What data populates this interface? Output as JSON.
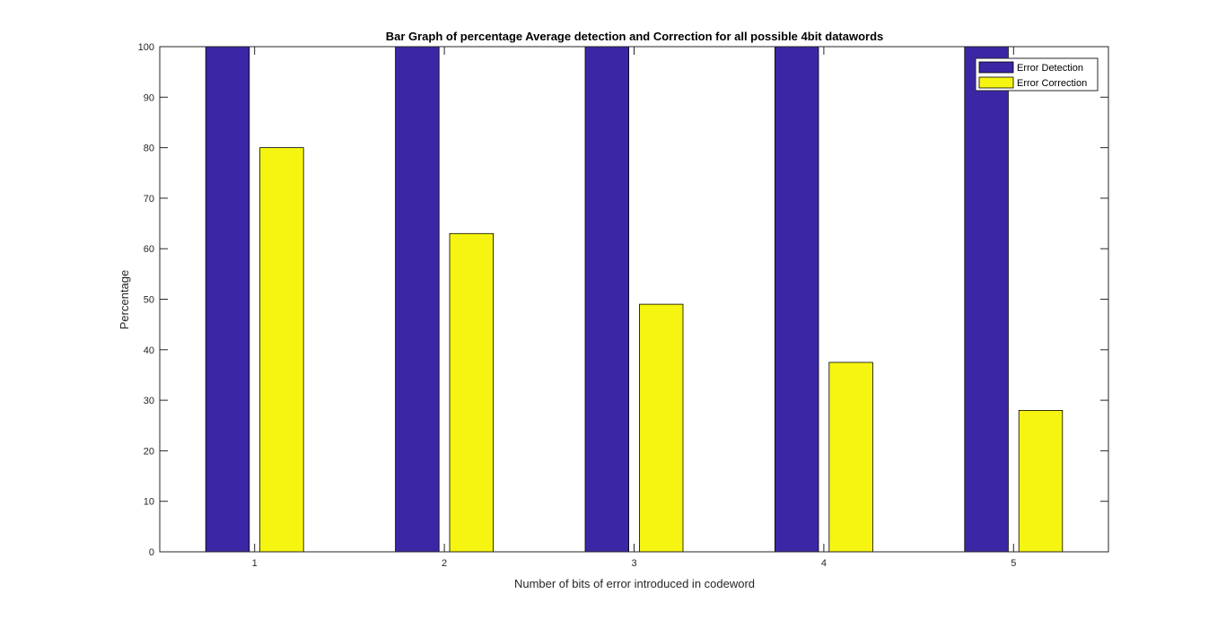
{
  "chart_data": {
    "type": "bar",
    "title": "Bar Graph of percentage Average detection and Correction for all possible 4bit datawords",
    "xlabel": "Number of bits of error introduced in codeword",
    "ylabel": "Percentage",
    "categories": [
      "1",
      "2",
      "3",
      "4",
      "5"
    ],
    "ylim": [
      0,
      100
    ],
    "yticks": [
      0,
      10,
      20,
      30,
      40,
      50,
      60,
      70,
      80,
      90,
      100
    ],
    "grid": false,
    "legend_position": "top-right",
    "series": [
      {
        "name": "Error Detection",
        "color": "#3b27a5",
        "values": [
          100,
          100,
          100,
          100,
          100
        ]
      },
      {
        "name": "Error Correction",
        "color": "#f5f511",
        "values": [
          80,
          63,
          49,
          37.5,
          28
        ]
      }
    ]
  }
}
